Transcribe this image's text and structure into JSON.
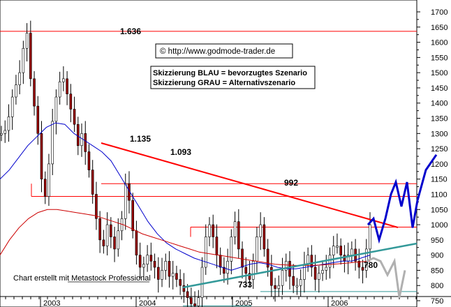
{
  "chart_data": {
    "type": "candlestick",
    "y_axis": {
      "min": 720,
      "max": 1720,
      "position": "right",
      "ticks": [
        "1700",
        "1650",
        "1600",
        "1550",
        "1500",
        "1450",
        "1400",
        "1350",
        "1300",
        "1250",
        "1200",
        "1150",
        "1100",
        "1050",
        "1000",
        "950",
        "900",
        "850",
        "800",
        "750"
      ]
    },
    "x_axis": {
      "labels": [
        "2003",
        "2004",
        "2005",
        "2006"
      ]
    },
    "grid": false,
    "horizontal_levels": [
      {
        "label": "1.636",
        "value": 1636
      },
      {
        "label": "1.135",
        "value": 1135
      },
      {
        "label": "1.093",
        "value": 1093
      },
      {
        "label": "992",
        "value": 992
      },
      {
        "label": "780",
        "value": 780
      },
      {
        "label": "733",
        "value": 733
      }
    ],
    "price_series": [
      1300,
      1310,
      1355,
      1420,
      1460,
      1500,
      1580,
      1630,
      1480,
      1390,
      1300,
      1150,
      1093,
      1200,
      1340,
      1420,
      1470,
      1480,
      1430,
      1380,
      1330,
      1260,
      1300,
      1240,
      1180,
      1100,
      1020,
      950,
      930,
      1000,
      960,
      920,
      980,
      1020,
      1135,
      1080,
      980,
      900,
      860,
      870,
      900,
      880,
      860,
      820,
      850,
      880,
      830,
      840,
      820,
      800,
      780,
      760,
      740,
      733,
      760,
      860,
      960,
      1000,
      960,
      900,
      860,
      840,
      880,
      960,
      1010,
      920,
      860,
      840,
      820,
      880,
      960,
      1000,
      920,
      860,
      800,
      790,
      800,
      850,
      880,
      830,
      800,
      800,
      820,
      870,
      900,
      860,
      820,
      840,
      850,
      860,
      900,
      930,
      930,
      900,
      880,
      900,
      920,
      880,
      860,
      850,
      920,
      1000
    ],
    "moving_averages": [
      {
        "color": "#0000cc",
        "values": [
          1150,
          1180,
          1220,
          1260,
          1290,
          1320,
          1335,
          1330,
          1300,
          1280,
          1260,
          1240,
          1210,
          1160,
          1110,
          1060,
          1010,
          970,
          940,
          920,
          905,
          890,
          880,
          870,
          860,
          850,
          860,
          870,
          875,
          870,
          860,
          855,
          855,
          860,
          865,
          870,
          875,
          880,
          880,
          890,
          900
        ]
      },
      {
        "color": "#cc0000",
        "values": [
          900,
          950,
          990,
          1020,
          1040,
          1050,
          1050,
          1045,
          1040,
          1035,
          1030,
          1020,
          1010,
          1000,
          985,
          970,
          960,
          950,
          940,
          930,
          920,
          910,
          905,
          900,
          895,
          890,
          885,
          880,
          875,
          870,
          868,
          866,
          866,
          866,
          868,
          870,
          872,
          875,
          878,
          880
        ]
      }
    ],
    "scenarios": [
      {
        "name": "Skizzierung BLAU = bevorzugtes Szenario",
        "color": "#0000cc",
        "values": [
          1000,
          1020,
          950,
          1020,
          1100,
          1140,
          1060,
          1140,
          990,
          1080,
          1180,
          1230
        ]
      },
      {
        "name": "Skizzierung GRAU = Alternativszenario",
        "color": "#b0b0b0",
        "values": [
          880,
          890,
          880,
          835,
          880,
          760,
          850
        ]
      }
    ],
    "annotations": [
      "© http://www.godmode-trader.de",
      "Chart erstellt mit Metastock Professional"
    ]
  }
}
